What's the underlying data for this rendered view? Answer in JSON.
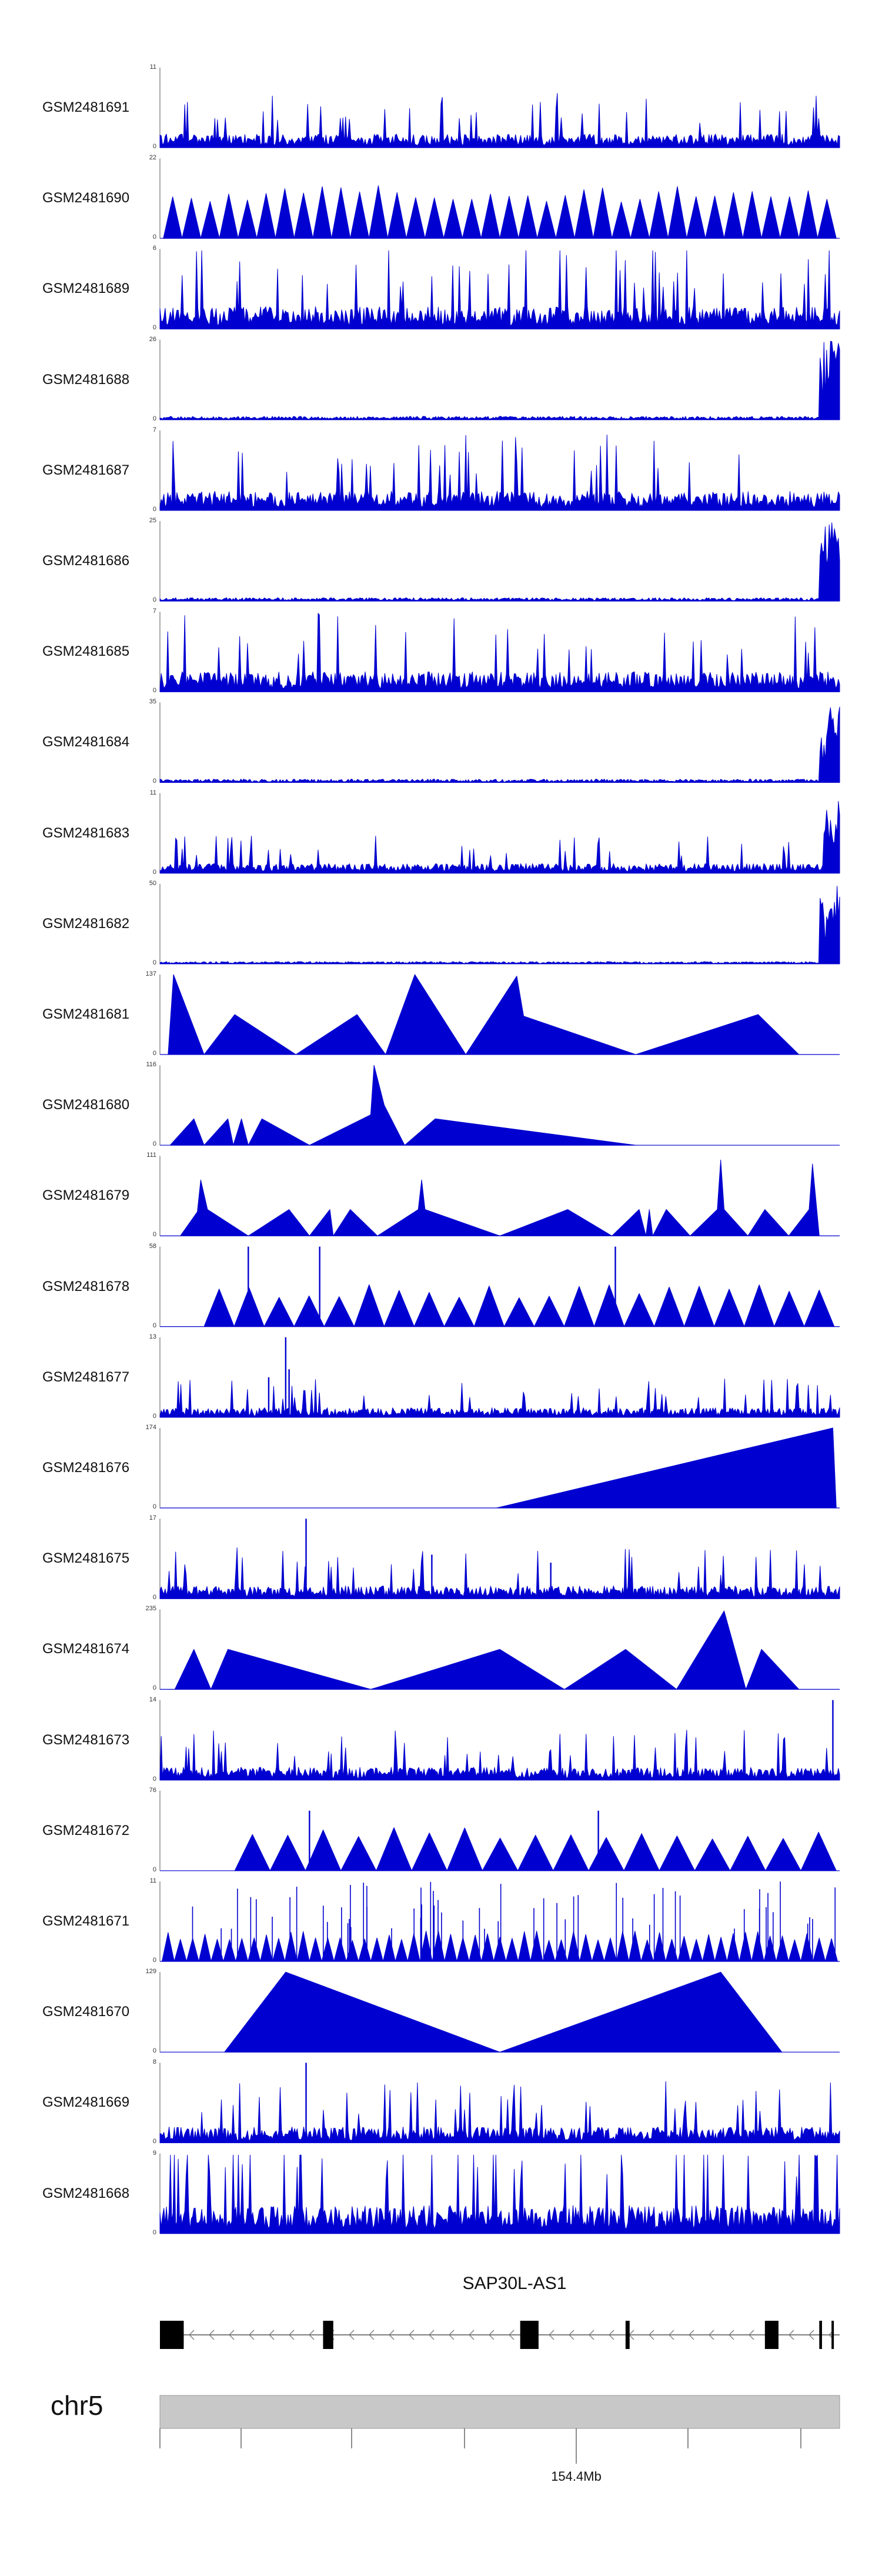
{
  "chart_data": {
    "type": "area",
    "title": "",
    "xlabel": "",
    "color": "#0000d0",
    "tracks": [
      {
        "sample": "GSM2481691",
        "ymax": "11",
        "ymin": "0",
        "pattern": "dense",
        "peak": 11,
        "level": 0.17,
        "seed": 11
      },
      {
        "sample": "GSM2481690",
        "ymax": "22",
        "ymin": "0",
        "pattern": "triangles",
        "peak": 22,
        "level": 0.6,
        "seed": 22,
        "x_start": 0.005,
        "x_end": 0.995,
        "count": 36
      },
      {
        "sample": "GSM2481689",
        "ymax": "6",
        "ymin": "0",
        "pattern": "dense",
        "peak": 6,
        "level": 0.28,
        "seed": 33
      },
      {
        "sample": "GSM2481688",
        "ymax": "26",
        "ymin": "0",
        "pattern": "endspike",
        "peak": 26,
        "level": 0.03,
        "seed": 44
      },
      {
        "sample": "GSM2481687",
        "ymax": "7",
        "ymin": "0",
        "pattern": "dense",
        "peak": 7,
        "level": 0.24,
        "seed": 55
      },
      {
        "sample": "GSM2481686",
        "ymax": "25",
        "ymin": "0",
        "pattern": "endspike",
        "peak": 25,
        "level": 0.03,
        "seed": 66
      },
      {
        "sample": "GSM2481685",
        "ymax": "7",
        "ymin": "0",
        "pattern": "dense",
        "peak": 7,
        "level": 0.25,
        "seed": 77
      },
      {
        "sample": "GSM2481684",
        "ymax": "35",
        "ymin": "0",
        "pattern": "endspike",
        "peak": 35,
        "level": 0.03,
        "seed": 88
      },
      {
        "sample": "GSM2481683",
        "ymax": "11",
        "ymin": "0",
        "pattern": "dense",
        "peak": 11,
        "level": 0.12,
        "seed": 99,
        "endspike": true
      },
      {
        "sample": "GSM2481682",
        "ymax": "50",
        "ymin": "0",
        "pattern": "endspike",
        "peak": 50,
        "level": 0.02,
        "seed": 110
      },
      {
        "sample": "GSM2481681",
        "ymax": "137",
        "ymin": "0",
        "pattern": "peaks",
        "points": [
          [
            0.012,
            0
          ],
          [
            0.02,
            1.0
          ],
          [
            0.065,
            0
          ],
          [
            0.11,
            0.5
          ],
          [
            0.2,
            0
          ],
          [
            0.29,
            0.5
          ],
          [
            0.332,
            0
          ],
          [
            0.375,
            1.0
          ],
          [
            0.45,
            0
          ],
          [
            0.525,
            0.98
          ],
          [
            0.535,
            0.48
          ],
          [
            0.7,
            0
          ],
          [
            0.88,
            0.5
          ],
          [
            0.94,
            0
          ]
        ]
      },
      {
        "sample": "GSM2481680",
        "ymax": "116",
        "ymin": "0",
        "pattern": "peaks",
        "points": [
          [
            0.015,
            0
          ],
          [
            0.05,
            0.33
          ],
          [
            0.065,
            0
          ],
          [
            0.1,
            0.33
          ],
          [
            0.108,
            0
          ],
          [
            0.12,
            0.33
          ],
          [
            0.13,
            0
          ],
          [
            0.15,
            0.33
          ],
          [
            0.22,
            0
          ],
          [
            0.31,
            0.38
          ],
          [
            0.315,
            1.0
          ],
          [
            0.33,
            0.5
          ],
          [
            0.36,
            0
          ],
          [
            0.405,
            0.33
          ],
          [
            0.7,
            0
          ]
        ]
      },
      {
        "sample": "GSM2481679",
        "ymax": "111",
        "ymin": "0",
        "pattern": "peaks",
        "points": [
          [
            0.03,
            0
          ],
          [
            0.055,
            0.3
          ],
          [
            0.06,
            0.7
          ],
          [
            0.07,
            0.33
          ],
          [
            0.13,
            0
          ],
          [
            0.19,
            0.33
          ],
          [
            0.22,
            0
          ],
          [
            0.25,
            0.33
          ],
          [
            0.255,
            0
          ],
          [
            0.28,
            0.33
          ],
          [
            0.32,
            0
          ],
          [
            0.38,
            0.33
          ],
          [
            0.385,
            0.7
          ],
          [
            0.39,
            0.33
          ],
          [
            0.5,
            0
          ],
          [
            0.6,
            0.33
          ],
          [
            0.665,
            0
          ],
          [
            0.705,
            0.33
          ],
          [
            0.715,
            0
          ],
          [
            0.72,
            0.33
          ],
          [
            0.725,
            0
          ],
          [
            0.745,
            0.33
          ],
          [
            0.78,
            0
          ],
          [
            0.82,
            0.33
          ],
          [
            0.825,
            0.95
          ],
          [
            0.83,
            0.33
          ],
          [
            0.865,
            0
          ],
          [
            0.89,
            0.33
          ],
          [
            0.925,
            0
          ],
          [
            0.955,
            0.33
          ],
          [
            0.96,
            0.9
          ],
          [
            0.97,
            0
          ]
        ]
      },
      {
        "sample": "GSM2481678",
        "ymax": "58",
        "ymin": "0",
        "pattern": "triangles",
        "peak": 58,
        "level": 0.48,
        "seed": 140,
        "x_start": 0.065,
        "x_end": 0.992,
        "count": 21,
        "spikes": [
          [
            0.13,
            1.0
          ],
          [
            0.235,
            1.0
          ],
          [
            0.67,
            1.0
          ]
        ]
      },
      {
        "sample": "GSM2481677",
        "ymax": "13",
        "ymin": "0",
        "pattern": "dense",
        "peak": 13,
        "level": 0.12,
        "seed": 150,
        "spikes": [
          [
            0.185,
            1.0
          ],
          [
            0.19,
            0.6
          ],
          [
            0.16,
            0.5
          ]
        ]
      },
      {
        "sample": "GSM2481676",
        "ymax": "174",
        "ymin": "0",
        "pattern": "peaks",
        "points": [
          [
            0.495,
            0
          ],
          [
            0.99,
            1.0
          ],
          [
            0.995,
            0
          ]
        ]
      },
      {
        "sample": "GSM2481675",
        "ymax": "17",
        "ymin": "0",
        "pattern": "dense",
        "peak": 17,
        "level": 0.16,
        "seed": 170,
        "spikes": [
          [
            0.215,
            1.0
          ],
          [
            0.4,
            0.55
          ],
          [
            0.575,
            0.45
          ]
        ]
      },
      {
        "sample": "GSM2481674",
        "ymax": "235",
        "ymin": "0",
        "pattern": "peaks",
        "points": [
          [
            0.022,
            0
          ],
          [
            0.05,
            0.5
          ],
          [
            0.075,
            0
          ],
          [
            0.1,
            0.5
          ],
          [
            0.31,
            0
          ],
          [
            0.5,
            0.5
          ],
          [
            0.595,
            0
          ],
          [
            0.685,
            0.5
          ],
          [
            0.76,
            0
          ],
          [
            0.83,
            0.98
          ],
          [
            0.862,
            0
          ],
          [
            0.885,
            0.5
          ],
          [
            0.94,
            0
          ]
        ]
      },
      {
        "sample": "GSM2481673",
        "ymax": "14",
        "ymin": "0",
        "pattern": "dense",
        "peak": 14,
        "level": 0.16,
        "seed": 190,
        "spikes": [
          [
            0.99,
            1.0
          ]
        ]
      },
      {
        "sample": "GSM2481672",
        "ymax": "76",
        "ymin": "0",
        "pattern": "triangles",
        "peak": 76,
        "level": 0.5,
        "seed": 200,
        "x_start": 0.11,
        "x_end": 0.995,
        "count": 17,
        "spikes": [
          [
            0.22,
            0.75
          ],
          [
            0.645,
            0.75
          ]
        ]
      },
      {
        "sample": "GSM2481671",
        "ymax": "11",
        "ymin": "0",
        "pattern": "triangles_dense",
        "peak": 11,
        "level": 0.35,
        "seed": 210,
        "x_start": 0.003,
        "x_end": 0.997,
        "count": 55
      },
      {
        "sample": "GSM2481670",
        "ymax": "129",
        "ymin": "0",
        "pattern": "peaks",
        "points": [
          [
            0.095,
            0
          ],
          [
            0.185,
            1.0
          ],
          [
            0.5,
            0
          ],
          [
            0.825,
            1.0
          ],
          [
            0.915,
            0
          ]
        ]
      },
      {
        "sample": "GSM2481669",
        "ymax": "8",
        "ymin": "0",
        "pattern": "dense",
        "peak": 8,
        "level": 0.2,
        "seed": 230,
        "spikes": [
          [
            0.215,
            1.0
          ]
        ]
      },
      {
        "sample": "GSM2481668",
        "ymax": "9",
        "ymin": "0",
        "pattern": "dense",
        "peak": 9,
        "level": 0.35,
        "seed": 240
      }
    ],
    "gene": {
      "name": "SAP30L-AS1",
      "strand": "-",
      "exons": [
        [
          0.0,
          0.035
        ],
        [
          0.24,
          0.255
        ],
        [
          0.53,
          0.557
        ],
        [
          0.685,
          0.691
        ],
        [
          0.89,
          0.91
        ],
        [
          0.97,
          0.974
        ],
        [
          0.988,
          0.991
        ]
      ]
    },
    "chromosome": {
      "name": "chr5",
      "tick_label": "154.4Mb",
      "tick_count": 7,
      "labeled_tick_index": 4
    }
  }
}
